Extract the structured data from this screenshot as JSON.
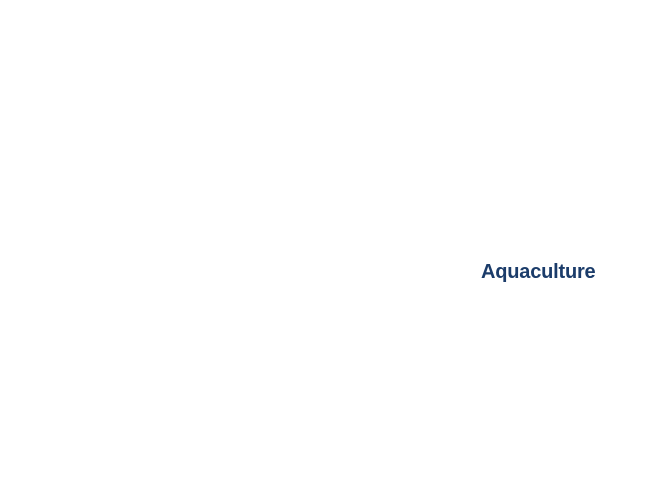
{
  "main": {
    "label_text": "Aquaculture"
  },
  "colors": {
    "background": "#ffffff",
    "label_text": "#1b3c6a"
  }
}
